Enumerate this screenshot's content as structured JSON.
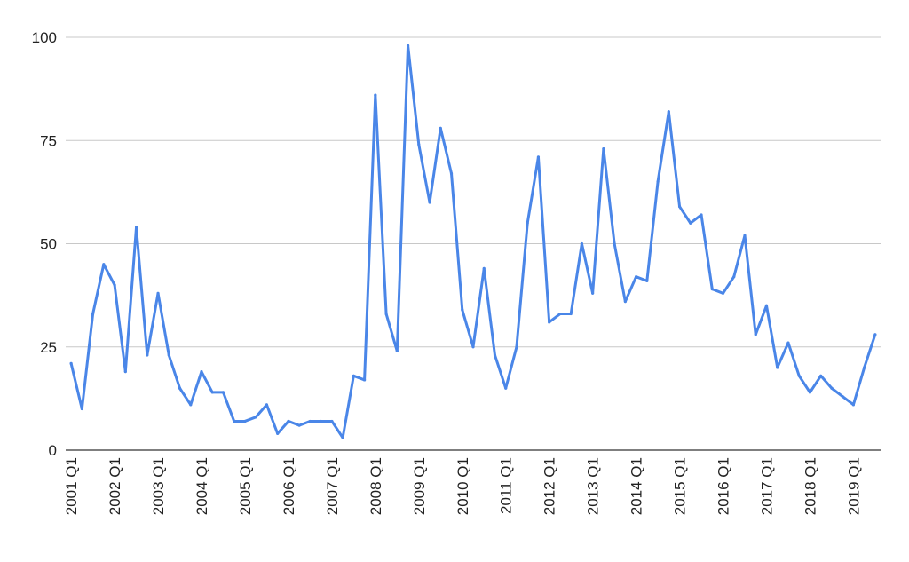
{
  "chart_data": {
    "type": "line",
    "title": "",
    "xlabel": "",
    "ylabel": "",
    "ylim": [
      0,
      100
    ],
    "y_ticks": [
      "0",
      "25",
      "50",
      "75",
      "100"
    ],
    "grid": "horizontal",
    "legend": "none",
    "colors": {
      "series": "#4a86e8",
      "grid": "#c8c8c8",
      "baseline": "#333333",
      "text": "#222222"
    },
    "x": [
      "2001 Q1",
      "2001 Q2",
      "2001 Q3",
      "2001 Q4",
      "2002 Q1",
      "2002 Q2",
      "2002 Q3",
      "2002 Q4",
      "2003 Q1",
      "2003 Q2",
      "2003 Q3",
      "2003 Q4",
      "2004 Q1",
      "2004 Q2",
      "2004 Q3",
      "2004 Q4",
      "2005 Q1",
      "2005 Q2",
      "2005 Q3",
      "2005 Q4",
      "2006 Q1",
      "2006 Q2",
      "2006 Q3",
      "2006 Q4",
      "2007 Q1",
      "2007 Q2",
      "2007 Q3",
      "2007 Q4",
      "2008 Q1",
      "2008 Q2",
      "2008 Q3",
      "2008 Q4",
      "2009 Q1",
      "2009 Q2",
      "2009 Q3",
      "2009 Q4",
      "2010 Q1",
      "2010 Q2",
      "2010 Q3",
      "2010 Q4",
      "2011 Q1",
      "2011 Q2",
      "2011 Q3",
      "2011 Q4",
      "2012 Q1",
      "2012 Q2",
      "2012 Q3",
      "2012 Q4",
      "2013 Q1",
      "2013 Q2",
      "2013 Q3",
      "2013 Q4",
      "2014 Q1",
      "2014 Q2",
      "2014 Q3",
      "2014 Q4",
      "2015 Q1",
      "2015 Q2",
      "2015 Q3",
      "2015 Q4",
      "2016 Q1",
      "2016 Q2",
      "2016 Q3",
      "2016 Q4",
      "2017 Q1",
      "2017 Q2",
      "2017 Q3",
      "2017 Q4",
      "2018 Q1",
      "2018 Q2",
      "2018 Q3",
      "2018 Q4",
      "2019 Q1",
      "2019 Q2",
      "2019 Q3"
    ],
    "x_tick_labels": [
      "2001 Q1",
      "2002 Q1",
      "2003 Q1",
      "2004 Q1",
      "2005 Q1",
      "2006 Q1",
      "2007 Q1",
      "2008 Q1",
      "2009 Q1",
      "2010 Q1",
      "2011 Q1",
      "2012 Q1",
      "2013 Q1",
      "2014 Q1",
      "2015 Q1",
      "2016 Q1",
      "2017 Q1",
      "2018 Q1",
      "2019 Q1"
    ],
    "series": [
      {
        "values": [
          21,
          10,
          33,
          45,
          40,
          19,
          54,
          23,
          38,
          23,
          15,
          11,
          19,
          14,
          14,
          7,
          7,
          8,
          11,
          4,
          7,
          6,
          7,
          7,
          7,
          3,
          18,
          17,
          86,
          33,
          24,
          98,
          74,
          60,
          78,
          67,
          34,
          25,
          44,
          23,
          15,
          25,
          55,
          71,
          31,
          33,
          33,
          50,
          38,
          73,
          50,
          36,
          42,
          41,
          65,
          82,
          59,
          55,
          57,
          39,
          38,
          42,
          52,
          28,
          35,
          20,
          26,
          18,
          14,
          18,
          15,
          13,
          11,
          20,
          28
        ]
      }
    ]
  }
}
